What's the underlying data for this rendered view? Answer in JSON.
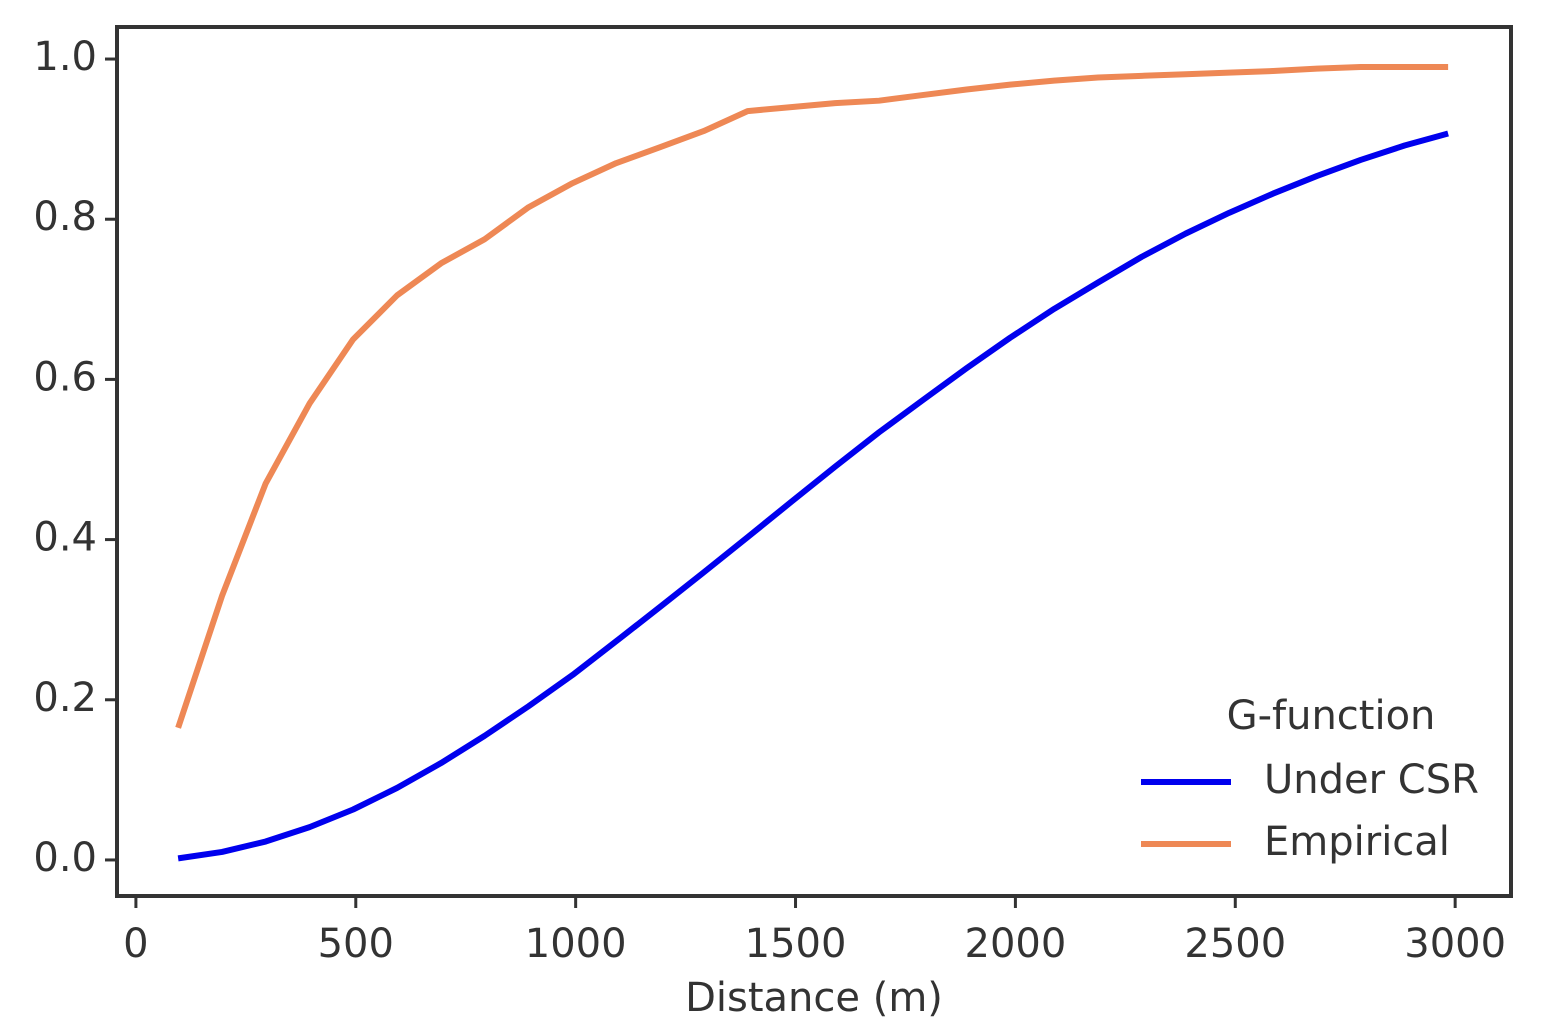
{
  "chart_data": {
    "type": "line",
    "xlabel": "Distance (m)",
    "x": [
      96,
      196,
      295,
      395,
      494,
      594,
      694,
      793,
      893,
      993,
      1092,
      1192,
      1291,
      1391,
      1490,
      1590,
      1690,
      1789,
      1889,
      1988,
      2088,
      2188,
      2287,
      2387,
      2486,
      2586,
      2686,
      2785,
      2885,
      2984
    ],
    "series": [
      {
        "name": "Under CSR",
        "color": "#0000ee",
        "values": [
          0.002,
          0.01,
          0.023,
          0.041,
          0.063,
          0.09,
          0.121,
          0.155,
          0.192,
          0.231,
          0.273,
          0.316,
          0.359,
          0.403,
          0.447,
          0.491,
          0.534,
          0.574,
          0.614,
          0.652,
          0.688,
          0.721,
          0.753,
          0.782,
          0.808,
          0.832,
          0.854,
          0.874,
          0.892,
          0.907
        ]
      },
      {
        "name": "Empirical",
        "color": "#ee8855",
        "values": [
          0.165,
          0.33,
          0.47,
          0.57,
          0.65,
          0.705,
          0.745,
          0.775,
          0.815,
          0.845,
          0.87,
          0.89,
          0.91,
          0.935,
          0.94,
          0.945,
          0.948,
          0.955,
          0.962,
          0.968,
          0.973,
          0.977,
          0.979,
          0.981,
          0.983,
          0.985,
          0.988,
          0.99,
          0.99,
          0.99
        ]
      }
    ],
    "legend_title": "G-function",
    "legend": "lower right",
    "xlim": [
      -43,
      3127
    ],
    "xticks": [
      0,
      500,
      1000,
      1500,
      2000,
      2500,
      3000
    ],
    "ylim": [
      -0.045,
      1.04
    ],
    "yticks": [
      {
        "value": 0,
        "label": "0.0"
      },
      0.2,
      0.4,
      0.6,
      0.8,
      {
        "value": 1,
        "label": "1.0"
      }
    ],
    "grid": false
  }
}
